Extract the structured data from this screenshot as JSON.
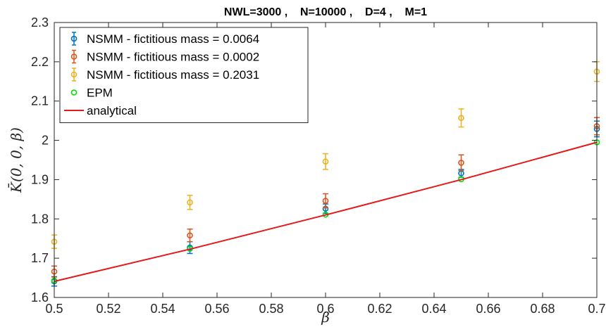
{
  "chart_data": {
    "type": "scatter",
    "title": "NWL=3000 ,    N=10000 ,    D=4 ,    M=1",
    "xlabel": "β",
    "ylabel": "K̄(0, 0, β)",
    "xlim": [
      0.5,
      0.7
    ],
    "ylim": [
      1.6,
      2.3
    ],
    "xticks": [
      "0.5",
      "0.52",
      "0.54",
      "0.56",
      "0.58",
      "0.6",
      "0.62",
      "0.64",
      "0.66",
      "0.68",
      "0.7"
    ],
    "yticks": [
      "1.6",
      "1.7",
      "1.8",
      "1.9",
      "2",
      "2.1",
      "2.2",
      "2.3"
    ],
    "grid": false,
    "legend_position": "top-left",
    "series": [
      {
        "name": "NSMM - fictitious mass = 0.0064",
        "color": "#0072BD",
        "marker": "circle-errorbar",
        "x": [
          0.5,
          0.55,
          0.6,
          0.65,
          0.7
        ],
        "y": [
          1.641,
          1.727,
          1.826,
          1.916,
          2.029
        ],
        "err": [
          0.012,
          0.015,
          0.012,
          0.01,
          0.02
        ]
      },
      {
        "name": "NSMM - fictitious mass = 0.0002",
        "color": "#D95319",
        "marker": "circle-errorbar",
        "x": [
          0.5,
          0.55,
          0.6,
          0.65,
          0.7
        ],
        "y": [
          1.666,
          1.758,
          1.846,
          1.943,
          2.036
        ],
        "err": [
          0.014,
          0.016,
          0.018,
          0.02,
          0.022
        ]
      },
      {
        "name": "NSMM - fictitious mass = 0.2031",
        "color": "#EDB120",
        "marker": "circle-errorbar",
        "x": [
          0.5,
          0.55,
          0.6,
          0.65,
          0.7
        ],
        "y": [
          1.742,
          1.842,
          1.946,
          2.057,
          2.175
        ],
        "err": [
          0.017,
          0.018,
          0.02,
          0.023,
          0.025
        ]
      },
      {
        "name": "EPM",
        "color": "#00E000",
        "marker": "circle",
        "x": [
          0.5,
          0.55,
          0.6,
          0.65,
          0.7
        ],
        "y": [
          1.643,
          1.724,
          1.811,
          1.901,
          1.995
        ]
      },
      {
        "name": "analytical",
        "color": "#E31A1C",
        "marker": "line",
        "x": [
          0.5,
          0.55,
          0.6,
          0.65,
          0.7
        ],
        "y": [
          1.641,
          1.723,
          1.81,
          1.9,
          1.995
        ]
      }
    ]
  }
}
